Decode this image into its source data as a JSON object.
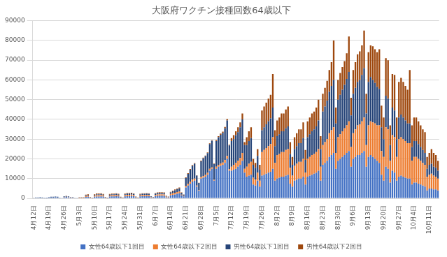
{
  "chart_data": {
    "type": "bar",
    "title": "大阪府ワクチン接種回数64歳以下",
    "stacked": true,
    "grid": true,
    "legend": "bottom",
    "ylim": [
      0,
      90000
    ],
    "yticks": [
      0,
      10000,
      20000,
      30000,
      40000,
      50000,
      60000,
      70000,
      80000,
      90000
    ],
    "categories": [
      "4月12日",
      null,
      null,
      null,
      null,
      null,
      null,
      "4月19日",
      null,
      null,
      null,
      null,
      null,
      null,
      "4月26日",
      null,
      null,
      null,
      null,
      null,
      null,
      "5月3日",
      null,
      null,
      null,
      null,
      null,
      null,
      "5月10日",
      null,
      null,
      null,
      null,
      null,
      null,
      "5月17日",
      null,
      null,
      null,
      null,
      null,
      null,
      "5月24日",
      null,
      null,
      null,
      null,
      null,
      null,
      "5月31日",
      null,
      null,
      null,
      null,
      null,
      null,
      "6月7日",
      null,
      null,
      null,
      null,
      null,
      null,
      "6月14日",
      null,
      null,
      null,
      null,
      null,
      null,
      "6月21日",
      null,
      null,
      null,
      null,
      null,
      null,
      "6月28日",
      null,
      null,
      null,
      null,
      null,
      null,
      "7月5日",
      null,
      null,
      null,
      null,
      null,
      null,
      "7月12日",
      null,
      null,
      null,
      null,
      null,
      null,
      "7月19日",
      null,
      null,
      null,
      null,
      null,
      null,
      "7月26日",
      null,
      null,
      null,
      null,
      null,
      null,
      "8月2日",
      null,
      null,
      null,
      null,
      null,
      null,
      "8月9日",
      null,
      null,
      null,
      null,
      null,
      null,
      "8月16日",
      null,
      null,
      null,
      null,
      null,
      null,
      "8月23日",
      null,
      null,
      null,
      null,
      null,
      null,
      "8月30日",
      null,
      null,
      null,
      null,
      null,
      null,
      "9月6日",
      null,
      null,
      null,
      null,
      null,
      null,
      "9月13日",
      null,
      null,
      null,
      null,
      null,
      null,
      "9月20日",
      null,
      null,
      null,
      null,
      null,
      null,
      "9月27日",
      null,
      null,
      null,
      null,
      null,
      null,
      "10月4日",
      null,
      null,
      null,
      null,
      null,
      null,
      "10月11日",
      null,
      null,
      null,
      null
    ],
    "series": [
      {
        "name": "女性64歳以下1回目",
        "color": "#4472C4",
        "values": [
          200,
          300,
          300,
          400,
          300,
          100,
          50,
          400,
          500,
          500,
          600,
          500,
          150,
          80,
          600,
          700,
          600,
          400,
          300,
          200,
          100,
          200,
          200,
          200,
          700,
          800,
          300,
          100,
          800,
          900,
          900,
          1000,
          900,
          300,
          150,
          900,
          1000,
          1000,
          1100,
          1000,
          300,
          200,
          1000,
          1100,
          1100,
          1200,
          1100,
          400,
          200,
          1000,
          1100,
          1100,
          1200,
          1100,
          500,
          300,
          1200,
          1300,
          1400,
          1400,
          1300,
          600,
          400,
          1500,
          1800,
          2000,
          2300,
          2600,
          1500,
          1000,
          5500,
          6500,
          7500,
          8500,
          9000,
          6000,
          4000,
          10000,
          10500,
          11000,
          12000,
          14000,
          15000,
          9000,
          15000,
          16000,
          16500,
          17000,
          18000,
          20000,
          14000,
          14000,
          14500,
          15000,
          16000,
          17000,
          19000,
          13000,
          11000,
          11500,
          12000,
          7000,
          6500,
          9000,
          6000,
          11500,
          12000,
          12500,
          13000,
          13500,
          15000,
          9000,
          10000,
          10500,
          11000,
          11000,
          11500,
          12000,
          7500,
          6000,
          9000,
          9500,
          10000,
          10000,
          11000,
          7000,
          11000,
          11500,
          12000,
          12500,
          13000,
          14000,
          9000,
          17000,
          18000,
          19000,
          21000,
          22000,
          23000,
          15000,
          19000,
          20000,
          21000,
          22000,
          23000,
          24000,
          16000,
          20000,
          21000,
          22000,
          22000,
          23000,
          24000,
          16000,
          21000,
          22000,
          21000,
          20000,
          19000,
          18000,
          12000,
          9000,
          16000,
          15000,
          8000,
          14000,
          13000,
          9000,
          11000,
          11500,
          11000,
          10500,
          10000,
          10000,
          7000,
          8000,
          8000,
          7500,
          7000,
          6500,
          6000,
          4000,
          5000,
          5000,
          4500,
          4500,
          4000
        ]
      },
      {
        "name": "女性64歳以下2回目",
        "color": "#ED7D31",
        "values": [
          0,
          0,
          0,
          0,
          0,
          0,
          0,
          0,
          0,
          0,
          0,
          0,
          0,
          0,
          100,
          100,
          100,
          50,
          50,
          20,
          10,
          200,
          200,
          200,
          500,
          600,
          200,
          100,
          600,
          700,
          700,
          700,
          600,
          200,
          100,
          500,
          600,
          600,
          600,
          500,
          200,
          100,
          600,
          700,
          700,
          700,
          600,
          200,
          100,
          500,
          600,
          600,
          600,
          600,
          200,
          100,
          600,
          700,
          700,
          700,
          700,
          300,
          200,
          700,
          800,
          900,
          900,
          900,
          400,
          300,
          800,
          900,
          1000,
          1000,
          1000,
          500,
          300,
          800,
          800,
          900,
          900,
          1000,
          700,
          400,
          1000,
          1000,
          1200,
          1200,
          1500,
          1500,
          800,
          2000,
          2500,
          3000,
          3000,
          3500,
          4000,
          2000,
          5000,
          6000,
          6500,
          3500,
          3000,
          4000,
          3000,
          12000,
          12500,
          13000,
          13500,
          14000,
          16000,
          9000,
          12000,
          12000,
          12500,
          12500,
          13000,
          13000,
          8000,
          5500,
          7500,
          8000,
          8500,
          8500,
          9000,
          6000,
          9000,
          9500,
          10000,
          10000,
          10500,
          11000,
          7000,
          10000,
          10500,
          11000,
          12000,
          12500,
          13000,
          8000,
          12000,
          12500,
          13000,
          13500,
          14000,
          15000,
          10000,
          13000,
          14000,
          15000,
          15500,
          16000,
          17000,
          11000,
          16000,
          17000,
          17500,
          18000,
          18000,
          19000,
          12000,
          12000,
          20000,
          20000,
          11000,
          18000,
          18000,
          12000,
          19000,
          19500,
          19000,
          18500,
          18000,
          18000,
          12000,
          13000,
          13000,
          12500,
          12000,
          11500,
          11000,
          7000,
          7000,
          7500,
          7000,
          6500,
          6000
        ]
      },
      {
        "name": "男性64歳以下1回目",
        "color": "#264478",
        "values": [
          100,
          200,
          150,
          200,
          200,
          80,
          30,
          200,
          300,
          300,
          300,
          300,
          100,
          40,
          300,
          400,
          300,
          200,
          200,
          100,
          50,
          100,
          100,
          100,
          400,
          400,
          150,
          50,
          400,
          500,
          500,
          500,
          400,
          150,
          80,
          500,
          500,
          500,
          600,
          500,
          200,
          100,
          500,
          600,
          600,
          600,
          500,
          200,
          100,
          500,
          600,
          600,
          600,
          600,
          300,
          200,
          600,
          700,
          700,
          700,
          700,
          300,
          200,
          800,
          1000,
          1200,
          1400,
          1600,
          900,
          600,
          4000,
          5000,
          6000,
          7000,
          7500,
          5000,
          3500,
          8000,
          9000,
          9500,
          10000,
          12500,
          13500,
          8000,
          13000,
          14000,
          14500,
          15000,
          16000,
          18000,
          12000,
          13000,
          13000,
          14000,
          14500,
          15500,
          17000,
          12000,
          11000,
          11500,
          12000,
          6500,
          6000,
          8500,
          5500,
          11000,
          11500,
          12000,
          12500,
          13000,
          15000,
          8500,
          9500,
          10000,
          10500,
          10500,
          11000,
          11500,
          7000,
          5500,
          8500,
          9000,
          9500,
          9500,
          10500,
          6500,
          11000,
          11500,
          12000,
          12500,
          13000,
          14500,
          9000,
          17000,
          18000,
          19500,
          21000,
          22500,
          24000,
          15000,
          19000,
          20000,
          21000,
          22000,
          23500,
          25000,
          16000,
          20000,
          21000,
          22000,
          22500,
          23500,
          25000,
          16000,
          22000,
          22500,
          21500,
          20500,
          19500,
          18500,
          12000,
          9000,
          16000,
          15500,
          8000,
          14000,
          13500,
          9000,
          11000,
          11500,
          11000,
          10500,
          10000,
          10000,
          7000,
          8000,
          8000,
          7500,
          7000,
          6500,
          6000,
          4000,
          5000,
          5000,
          4500,
          4500,
          4000
        ]
      },
      {
        "name": "男性64歳以下2回目",
        "color": "#9E480E",
        "values": [
          0,
          0,
          0,
          0,
          0,
          0,
          0,
          0,
          0,
          0,
          0,
          0,
          0,
          0,
          50,
          50,
          50,
          30,
          30,
          10,
          5,
          100,
          100,
          100,
          300,
          300,
          100,
          50,
          300,
          400,
          400,
          400,
          300,
          100,
          50,
          300,
          300,
          300,
          300,
          300,
          100,
          50,
          300,
          400,
          400,
          400,
          300,
          100,
          50,
          300,
          300,
          300,
          300,
          300,
          100,
          50,
          300,
          300,
          300,
          300,
          300,
          150,
          100,
          300,
          300,
          400,
          400,
          400,
          200,
          100,
          300,
          400,
          400,
          400,
          400,
          200,
          100,
          300,
          300,
          300,
          400,
          400,
          300,
          200,
          500,
          500,
          600,
          600,
          700,
          700,
          400,
          1500,
          2000,
          2000,
          2500,
          2500,
          3000,
          1500,
          4000,
          5000,
          5500,
          3000,
          2500,
          3500,
          2500,
          10000,
          10500,
          11000,
          11500,
          12000,
          17000,
          8000,
          8000,
          8500,
          9000,
          9000,
          9500,
          10000,
          6000,
          4000,
          6000,
          6500,
          7000,
          7000,
          8000,
          5000,
          8000,
          8500,
          9000,
          9000,
          9500,
          10500,
          6500,
          9000,
          9500,
          10000,
          11000,
          12000,
          20000,
          8000,
          10000,
          11000,
          11500,
          12000,
          13000,
          18000,
          9000,
          12000,
          13000,
          14000,
          14500,
          15000,
          19000,
          10000,
          15000,
          16000,
          17000,
          17000,
          17500,
          20000,
          11000,
          11000,
          19000,
          19500,
          10000,
          17000,
          18000,
          11000,
          18000,
          18500,
          18000,
          17500,
          17000,
          27000,
          11000,
          12000,
          12000,
          11500,
          11000,
          10500,
          10500,
          6000,
          6000,
          7500,
          7000,
          6500,
          5000
        ]
      }
    ]
  }
}
